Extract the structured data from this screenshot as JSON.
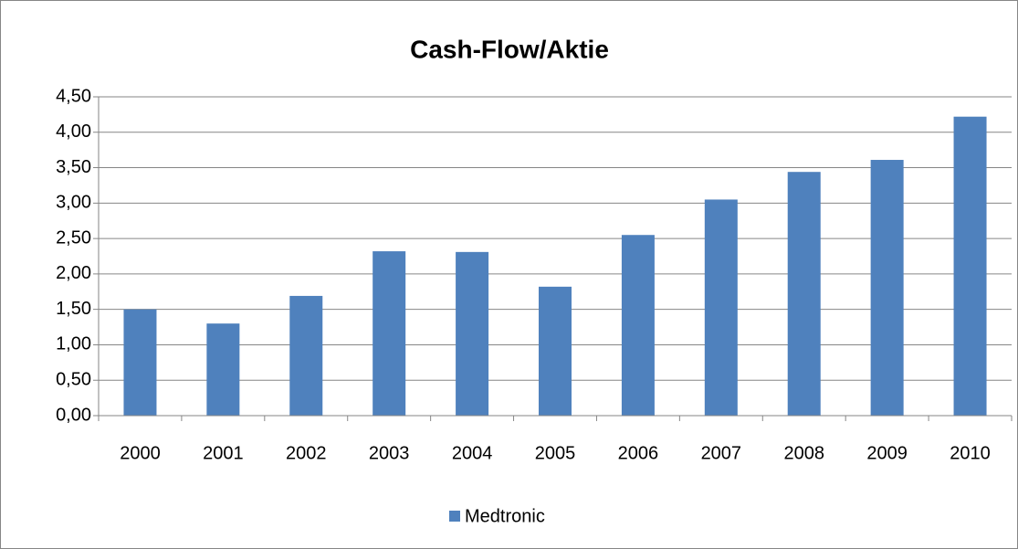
{
  "chart_data": {
    "type": "bar",
    "title": "Cash-Flow/Aktie",
    "categories": [
      "2000",
      "2001",
      "2002",
      "2003",
      "2004",
      "2005",
      "2006",
      "2007",
      "2008",
      "2009",
      "2010"
    ],
    "series": [
      {
        "name": "Medtronic",
        "color": "#4f81bd",
        "values": [
          1.5,
          1.3,
          1.69,
          2.32,
          2.31,
          1.82,
          2.55,
          3.05,
          3.44,
          3.61,
          4.22
        ]
      }
    ],
    "ylim": [
      0,
      4.5
    ],
    "yticks": [
      {
        "value": 0,
        "label": "0,00"
      },
      {
        "value": 0.5,
        "label": "0,50"
      },
      {
        "value": 1,
        "label": "1,00"
      },
      {
        "value": 1.5,
        "label": "1,50"
      },
      {
        "value": 2,
        "label": "2,00"
      },
      {
        "value": 2.5,
        "label": "2,50"
      },
      {
        "value": 3,
        "label": "3,00"
      },
      {
        "value": 3.5,
        "label": "3,50"
      },
      {
        "value": 4,
        "label": "4,00"
      },
      {
        "value": 4.5,
        "label": "4,50"
      }
    ],
    "grid": true,
    "legend": "bottom"
  }
}
